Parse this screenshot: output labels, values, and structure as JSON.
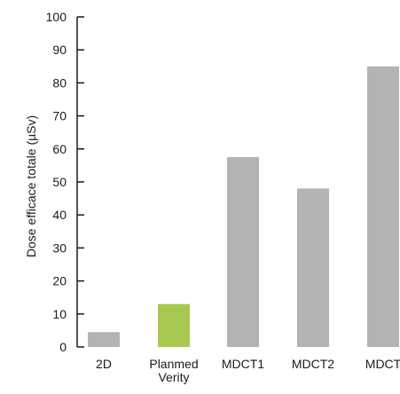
{
  "chart_data": {
    "type": "bar",
    "categories": [
      [
        "2D"
      ],
      [
        "Planmed",
        "Verity"
      ],
      [
        "MDCT1"
      ],
      [
        "MDCT2"
      ],
      [
        "MDCT"
      ]
    ],
    "values": [
      4.5,
      13,
      57.5,
      48,
      85
    ],
    "bar_colors": [
      "#b3b3b3",
      "#a8c94f",
      "#b3b3b3",
      "#b3b3b3",
      "#b3b3b3"
    ],
    "ylabel": "Dose efficace totale (µSv)",
    "ylim": [
      0,
      100
    ],
    "yticks": [
      0,
      10,
      20,
      30,
      40,
      50,
      60,
      70,
      80,
      90,
      100
    ],
    "grid": false,
    "legend": "none"
  }
}
